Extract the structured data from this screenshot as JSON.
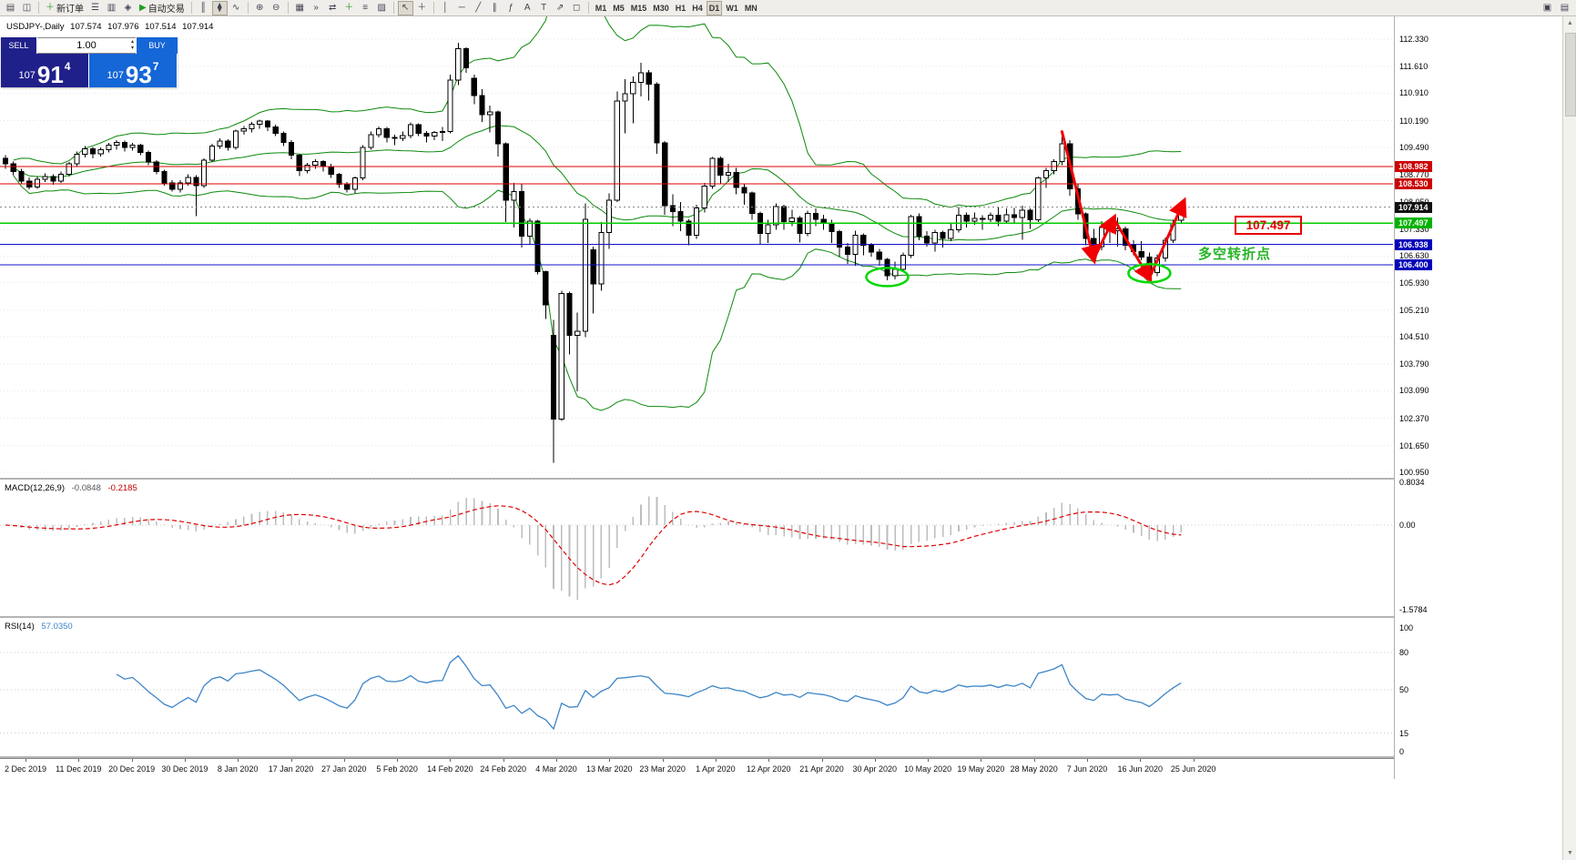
{
  "title": {
    "symbol_period": "USDJPY-,Daily",
    "open": "107.574",
    "high": "107.976",
    "low": "107.514",
    "close": "107.914"
  },
  "one_click": {
    "sell_label": "SELL",
    "buy_label": "BUY",
    "volume": "1.00",
    "sell_price": {
      "prefix": "107",
      "big": "91",
      "sup": "4"
    },
    "buy_price": {
      "prefix": "107",
      "big": "93",
      "sup": "7"
    }
  },
  "icons": {
    "spin_up": "▴",
    "spin_down": "▾",
    "scroll_up": "▲",
    "scroll_down": "▼"
  },
  "toolbar": {
    "items": [
      {
        "name": "new-chart",
        "glyph": "▤"
      },
      {
        "name": "profiles",
        "glyph": "◫"
      },
      {
        "sep": true
      },
      {
        "name": "new-order",
        "glyph": "＋",
        "glyph_color": "#1f9d1f",
        "label": "新订单"
      },
      {
        "name": "market-watch",
        "glyph": "☰"
      },
      {
        "name": "data-window",
        "glyph": "▥"
      },
      {
        "name": "navigator",
        "glyph": "◈"
      },
      {
        "name": "autotrading",
        "glyph": "▶",
        "glyph_color": "#1f9d1f",
        "label": "自动交易"
      },
      {
        "sep": true
      },
      {
        "name": "bar-chart",
        "glyph": "║"
      },
      {
        "name": "candlestick-chart",
        "glyph": "⧫",
        "active": true
      },
      {
        "name": "line-chart",
        "glyph": "∿"
      },
      {
        "sep": true
      },
      {
        "name": "zoom-in",
        "glyph": "⊕"
      },
      {
        "name": "zoom-out",
        "glyph": "⊖"
      },
      {
        "sep": true
      },
      {
        "name": "tile-windows",
        "glyph": "▦"
      },
      {
        "name": "auto-scroll",
        "glyph": "»"
      },
      {
        "name": "chart-shift",
        "glyph": "⇄"
      },
      {
        "name": "indicators",
        "glyph": "＋",
        "glyph_color": "#1f9d1f"
      },
      {
        "name": "periods",
        "glyph": "≡"
      },
      {
        "name": "templates",
        "glyph": "▨"
      },
      {
        "sep": true
      },
      {
        "name": "cursor",
        "glyph": "↖",
        "active": true
      },
      {
        "name": "crosshair",
        "glyph": "＋"
      },
      {
        "sep": true
      },
      {
        "name": "vertical-line",
        "glyph": "│"
      },
      {
        "name": "horizontal-line",
        "glyph": "─"
      },
      {
        "name": "trendline",
        "glyph": "╱"
      },
      {
        "name": "equidistant-channel",
        "glyph": "∥"
      },
      {
        "name": "fibonacci",
        "glyph": "ƒ"
      },
      {
        "name": "text",
        "glyph": "A"
      },
      {
        "name": "text-label",
        "glyph": "T"
      },
      {
        "name": "arrows",
        "glyph": "⇗"
      },
      {
        "name": "shapes",
        "glyph": "◻"
      },
      {
        "sep": true
      },
      {
        "name": "tf-m1",
        "label": "M1",
        "tf": true
      },
      {
        "name": "tf-m5",
        "label": "M5",
        "tf": true
      },
      {
        "name": "tf-m15",
        "label": "M15",
        "tf": true
      },
      {
        "name": "tf-m30",
        "label": "M30",
        "tf": true
      },
      {
        "name": "tf-h1",
        "label": "H1",
        "tf": true
      },
      {
        "name": "tf-h4",
        "label": "H4",
        "tf": true
      },
      {
        "name": "tf-d1",
        "label": "D1",
        "tf": true,
        "active": true
      },
      {
        "name": "tf-w1",
        "label": "W1",
        "tf": true
      },
      {
        "name": "tf-mn",
        "label": "MN",
        "tf": true
      }
    ],
    "right_items": [
      {
        "name": "window-cascade",
        "glyph": "▣"
      },
      {
        "name": "window-tile",
        "glyph": "▤"
      }
    ]
  },
  "macd": {
    "name": "MACD(12,26,9)",
    "value_main": "-0.0848",
    "value_signal": "-0.2185",
    "axis": [
      {
        "label": "0.8034",
        "value": 0.8034
      },
      {
        "label": "0.00",
        "value": 0
      },
      {
        "label": "-1.5784",
        "value": -1.5784
      }
    ],
    "range": [
      -1.5784,
      0.8034
    ]
  },
  "rsi": {
    "name": "RSI(14)",
    "value": "57.0350",
    "axis": [
      {
        "label": "100",
        "value": 100
      },
      {
        "label": "80",
        "value": 80
      },
      {
        "label": "50",
        "value": 50
      },
      {
        "label": "15",
        "value": 15
      },
      {
        "label": "0",
        "value": 0
      }
    ],
    "levels": [
      80,
      50,
      15
    ]
  },
  "annotations": {
    "price_box": "107.497",
    "turning_point": "多空转折点",
    "zigzag": [
      [
        133,
        109.9
      ],
      [
        137,
        106.55
      ],
      [
        139.5,
        107.62
      ],
      [
        144,
        106.05
      ],
      [
        148.3,
        108.05
      ]
    ],
    "ellipses": [
      {
        "bar": 111,
        "price": 106.08
      },
      {
        "bar": 144,
        "price": 106.18
      }
    ]
  },
  "colors": {
    "bull": "#ffffff",
    "bear": "#000000",
    "candle_stroke": "#000000",
    "bollinger": "#0b8a0b",
    "grid": "#e6e6e6",
    "macd_hist": "#bdbdbd",
    "macd_signal": "#e00000",
    "rsi_line": "#3d85c8",
    "level_dotted": "#cccccc",
    "zigzag": "#f00000",
    "ellipse": "#00d800",
    "anno_text": "#28b428",
    "anno_box": "#e80000",
    "sell_navy": "#20208a",
    "buy_blue": "#1566d6"
  },
  "chart_data": {
    "type": "candlestick",
    "symbol": "USDJPY-",
    "timeframe": "Daily",
    "x_labels": [
      "2 Dec 2019",
      "11 Dec 2019",
      "20 Dec 2019",
      "30 Dec 2019",
      "8 Jan 2020",
      "17 Jan 2020",
      "27 Jan 2020",
      "5 Feb 2020",
      "14 Feb 2020",
      "24 Feb 2020",
      "4 Mar 2020",
      "13 Mar 2020",
      "23 Mar 2020",
      "1 Apr 2020",
      "12 Apr 2020",
      "21 Apr 2020",
      "30 Apr 2020",
      "10 May 2020",
      "19 May 2020",
      "28 May 2020",
      "7 Jun 2020",
      "16 Jun 2020",
      "25 Jun 2020"
    ],
    "y_ticks": [
      {
        "label": "112.330",
        "value": 112.33
      },
      {
        "label": "111.610",
        "value": 111.61
      },
      {
        "label": "110.910",
        "value": 110.91
      },
      {
        "label": "110.190",
        "value": 110.19
      },
      {
        "label": "109.490",
        "value": 109.49
      },
      {
        "label": "108.770",
        "value": 108.77
      },
      {
        "label": "108.050",
        "value": 108.05
      },
      {
        "label": "107.330",
        "value": 107.33
      },
      {
        "label": "106.630",
        "value": 106.63
      },
      {
        "label": "105.930",
        "value": 105.93
      },
      {
        "label": "105.210",
        "value": 105.21
      },
      {
        "label": "104.510",
        "value": 104.51
      },
      {
        "label": "103.790",
        "value": 103.79
      },
      {
        "label": "103.090",
        "value": 103.09
      },
      {
        "label": "102.370",
        "value": 102.37
      },
      {
        "label": "101.650",
        "value": 101.65
      },
      {
        "label": "100.950",
        "value": 100.95
      }
    ],
    "chips": [
      {
        "label": "108.982",
        "value": 108.982,
        "bg": "#cc0000"
      },
      {
        "label": "108.530",
        "value": 108.53,
        "bg": "#cc0000"
      },
      {
        "label": "107.914",
        "value": 107.914,
        "bg": "#111111"
      },
      {
        "label": "107.497",
        "value": 107.497,
        "bg": "#00b300"
      },
      {
        "label": "106.938",
        "value": 106.938,
        "bg": "#0000bb"
      },
      {
        "label": "106.400",
        "value": 106.4,
        "bg": "#0000bb"
      }
    ],
    "levels": [
      {
        "value": 108.982,
        "color": "#dd0000",
        "width": 1
      },
      {
        "value": 108.53,
        "color": "#dd0000",
        "width": 1
      },
      {
        "value": 107.497,
        "color": "#00cc00",
        "width": 1.3
      },
      {
        "value": 106.938,
        "color": "#1111cc",
        "width": 1.3
      },
      {
        "value": 106.4,
        "color": "#1111cc",
        "width": 1.3
      },
      {
        "value": 107.914,
        "color": "#888888",
        "width": 1,
        "style": "dotted"
      }
    ],
    "current_price": 107.914,
    "bollinger": {
      "period": 20,
      "deviation": 2
    },
    "ohlc": {
      "open": [
        109.2,
        109.05,
        108.85,
        108.6,
        108.45,
        108.65,
        108.72,
        108.6,
        108.78,
        109.05,
        109.3,
        109.45,
        109.32,
        109.42,
        109.55,
        109.62,
        109.48,
        109.55,
        109.35,
        109.1,
        108.85,
        108.55,
        108.38,
        108.55,
        108.7,
        108.48,
        109.15,
        109.52,
        109.65,
        109.48,
        109.92,
        109.98,
        110.1,
        110.18,
        110.02,
        109.85,
        109.62,
        109.28,
        108.88,
        109.02,
        109.12,
        108.98,
        108.78,
        108.52,
        108.38,
        108.68,
        109.48,
        109.82,
        109.98,
        109.75,
        109.72,
        109.8,
        110.08,
        109.85,
        109.78,
        109.88,
        109.9,
        111.25,
        112.08,
        111.3,
        110.85,
        110.35,
        110.42,
        109.58,
        108.1,
        108.32,
        107.15,
        107.55,
        106.22,
        104.55,
        102.35,
        105.65,
        104.55,
        104.65,
        106.8,
        105.9,
        107.25,
        108.1,
        110.7,
        110.9,
        111.2,
        111.45,
        111.15,
        109.6,
        107.95,
        107.8,
        107.55,
        107.18,
        107.9,
        108.47,
        109.2,
        108.75,
        108.83,
        108.43,
        108.29,
        107.75,
        107.23,
        107.45,
        107.93,
        107.54,
        107.63,
        107.22,
        107.75,
        107.6,
        107.5,
        107.27,
        106.87,
        106.68,
        107.18,
        106.91,
        106.74,
        106.54,
        106.11,
        106.28,
        106.65,
        107.67,
        107.15,
        106.98,
        107.25,
        107.1,
        107.32,
        107.7,
        107.55,
        107.62,
        107.6,
        107.7,
        107.55,
        107.72,
        107.64,
        107.83,
        107.58,
        108.68,
        108.88,
        109.12,
        109.58,
        108.4,
        107.74,
        107.1,
        106.88,
        107.38,
        107.3,
        107.35,
        106.92,
        106.75,
        106.6,
        106.2,
        106.58,
        107.05,
        107.574
      ],
      "high": [
        109.28,
        109.12,
        108.92,
        108.7,
        108.72,
        108.8,
        108.78,
        108.85,
        109.1,
        109.38,
        109.52,
        109.5,
        109.48,
        109.6,
        109.68,
        109.66,
        109.6,
        109.58,
        109.4,
        109.15,
        108.9,
        108.62,
        108.62,
        108.78,
        108.75,
        109.2,
        109.58,
        109.72,
        109.7,
        109.95,
        110.05,
        110.15,
        110.22,
        110.2,
        110.08,
        109.9,
        109.68,
        109.32,
        109.08,
        109.18,
        109.15,
        109.05,
        108.82,
        108.58,
        108.72,
        109.55,
        109.9,
        110.03,
        110.02,
        109.82,
        109.9,
        110.14,
        110.12,
        109.92,
        109.92,
        110.02,
        111.4,
        112.23,
        112.12,
        111.4,
        111.02,
        110.58,
        110.45,
        109.62,
        108.55,
        108.52,
        107.62,
        107.58,
        106.25,
        104.95,
        105.72,
        105.7,
        105.15,
        108.02,
        106.88,
        107.52,
        108.28,
        110.95,
        111.28,
        111.35,
        111.71,
        111.52,
        111.2,
        109.65,
        108.25,
        108.05,
        107.6,
        107.98,
        108.55,
        109.23,
        109.25,
        109.05,
        108.95,
        108.52,
        108.32,
        107.8,
        107.58,
        108.02,
        107.98,
        107.85,
        107.68,
        107.82,
        107.88,
        107.72,
        107.58,
        107.32,
        106.98,
        107.3,
        107.22,
        106.98,
        106.82,
        106.58,
        106.48,
        106.72,
        107.72,
        107.75,
        107.28,
        107.32,
        107.3,
        107.48,
        107.92,
        107.78,
        107.78,
        107.7,
        107.78,
        107.92,
        107.88,
        107.9,
        107.95,
        107.88,
        108.72,
        108.95,
        109.18,
        109.85,
        109.68,
        108.52,
        107.78,
        107.35,
        107.55,
        107.42,
        107.65,
        107.4,
        107.05,
        107.02,
        106.72,
        106.68,
        107.12,
        107.58,
        107.976
      ],
      "low": [
        108.92,
        108.75,
        108.52,
        108.38,
        108.4,
        108.58,
        108.5,
        108.55,
        108.72,
        109.0,
        109.22,
        109.2,
        109.25,
        109.35,
        109.42,
        109.38,
        109.4,
        109.28,
        109.02,
        108.78,
        108.48,
        108.32,
        108.3,
        108.48,
        107.68,
        108.42,
        109.1,
        109.45,
        109.4,
        109.42,
        109.82,
        109.88,
        109.98,
        109.92,
        109.78,
        109.52,
        109.18,
        108.73,
        108.8,
        108.92,
        108.85,
        108.68,
        108.42,
        108.3,
        108.28,
        108.62,
        109.42,
        109.75,
        109.62,
        109.55,
        109.65,
        109.72,
        109.78,
        109.62,
        109.68,
        109.65,
        109.85,
        111.12,
        111.45,
        110.62,
        110.15,
        109.88,
        109.25,
        107.52,
        107.38,
        106.85,
        106.95,
        106.15,
        104.98,
        101.2,
        102.3,
        104.05,
        103.08,
        104.5,
        105.12,
        105.72,
        106.82,
        108.05,
        109.85,
        110.12,
        110.82,
        110.72,
        109.32,
        107.72,
        107.42,
        107.28,
        106.92,
        107.08,
        107.78,
        108.4,
        108.52,
        108.58,
        108.25,
        107.98,
        107.58,
        106.93,
        106.98,
        107.32,
        107.32,
        107.42,
        106.99,
        107.15,
        107.42,
        107.32,
        106.98,
        106.62,
        106.42,
        106.38,
        106.65,
        106.62,
        106.38,
        105.99,
        106.02,
        106.22,
        106.58,
        107.05,
        106.88,
        106.75,
        106.85,
        107.02,
        107.25,
        107.38,
        107.45,
        107.32,
        107.52,
        107.42,
        107.48,
        107.5,
        107.06,
        107.35,
        107.52,
        108.42,
        108.78,
        109.02,
        108.22,
        107.58,
        106.92,
        106.58,
        106.78,
        106.98,
        106.88,
        106.78,
        106.65,
        106.52,
        106.07,
        106.1,
        106.48,
        106.98,
        107.514
      ],
      "close": [
        109.05,
        108.85,
        108.6,
        108.45,
        108.65,
        108.72,
        108.6,
        108.78,
        109.05,
        109.3,
        109.45,
        109.32,
        109.42,
        109.55,
        109.62,
        109.48,
        109.55,
        109.35,
        109.1,
        108.85,
        108.55,
        108.38,
        108.55,
        108.7,
        108.48,
        109.15,
        109.52,
        109.65,
        109.48,
        109.92,
        109.98,
        110.1,
        110.18,
        110.02,
        109.85,
        109.62,
        109.28,
        108.88,
        109.02,
        109.12,
        108.98,
        108.78,
        108.52,
        108.38,
        108.68,
        109.48,
        109.82,
        109.98,
        109.75,
        109.72,
        109.8,
        110.08,
        109.85,
        109.78,
        109.88,
        109.9,
        111.25,
        112.08,
        111.58,
        110.85,
        110.35,
        110.42,
        109.58,
        108.1,
        108.32,
        107.15,
        107.55,
        106.22,
        105.35,
        102.35,
        105.65,
        104.55,
        104.65,
        107.6,
        105.9,
        107.25,
        108.1,
        110.7,
        110.9,
        111.2,
        111.45,
        111.15,
        109.6,
        107.95,
        107.8,
        107.55,
        107.18,
        107.9,
        108.47,
        109.2,
        108.75,
        108.83,
        108.43,
        108.29,
        107.75,
        107.23,
        107.45,
        107.93,
        107.54,
        107.63,
        107.22,
        107.75,
        107.6,
        107.5,
        107.27,
        106.87,
        106.68,
        107.18,
        106.91,
        106.74,
        106.54,
        106.11,
        106.28,
        106.65,
        107.67,
        107.15,
        106.98,
        107.25,
        107.1,
        107.32,
        107.7,
        107.55,
        107.62,
        107.6,
        107.7,
        107.55,
        107.72,
        107.64,
        107.83,
        107.58,
        108.68,
        108.88,
        109.12,
        109.58,
        108.4,
        107.74,
        107.1,
        106.88,
        107.38,
        107.3,
        107.35,
        106.92,
        106.75,
        106.6,
        106.2,
        106.58,
        107.05,
        107.5,
        107.914
      ]
    }
  }
}
